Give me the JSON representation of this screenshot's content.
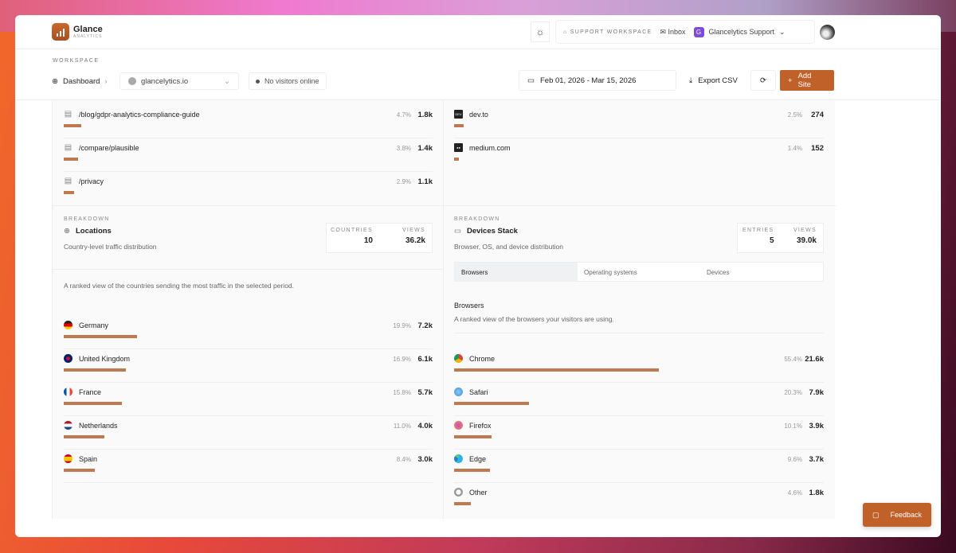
{
  "app": {
    "brand": "Glance",
    "brand_sub": "ANALYTICS"
  },
  "header": {
    "support_workspace": "SUPPORT WORKSPACE",
    "inbox": "Inbox",
    "workspace_badge": "G",
    "workspace_name": "Glancelytics Support"
  },
  "workspace": {
    "label": "WORKSPACE",
    "dashboard": "Dashboard",
    "site": "glancelytics.io",
    "online": "No visitors online",
    "date_range": "Feb 01, 2026 - Mar 15, 2026",
    "export": "Export CSV",
    "add_site": "Add Site"
  },
  "pages": [
    {
      "label": "/blog/gdpr-analytics-compliance-guide",
      "pct": "4.7%",
      "value": "1.8k",
      "share": 4.7
    },
    {
      "label": "/compare/plausible",
      "pct": "3.8%",
      "value": "1.4k",
      "share": 3.8
    },
    {
      "label": "/privacy",
      "pct": "2.9%",
      "value": "1.1k",
      "share": 2.9
    }
  ],
  "sources": [
    {
      "label": "dev.to",
      "icon": "DEV",
      "pct": "2.5%",
      "value": "274",
      "share": 2.5
    },
    {
      "label": "medium.com",
      "icon": "●●",
      "pct": "1.4%",
      "value": "152",
      "share": 1.4
    }
  ],
  "locations": {
    "eyebrow": "BREAKDOWN",
    "title": "Locations",
    "desc": "Country-level traffic distribution",
    "stat1_label": "COUNTRIES",
    "stat1_value": "10",
    "stat2_label": "VIEWS",
    "stat2_value": "36.2k",
    "intro": "A ranked view of the countries sending the most traffic in the selected period.",
    "rows": [
      {
        "label": "Germany",
        "pct": "19.9%",
        "value": "7.2k",
        "share": 19.9,
        "flag": "linear-gradient(#222 33%,#d00 33% 66%,#fc0 66%)"
      },
      {
        "label": "United Kingdom",
        "pct": "16.9%",
        "value": "6.1k",
        "share": 16.9,
        "flag": "radial-gradient(#c8102e 30%,#012169 32%)"
      },
      {
        "label": "France",
        "pct": "15.8%",
        "value": "5.7k",
        "share": 15.8,
        "flag": "linear-gradient(90deg,#0055a4 33%,#fff 33% 66%,#ef4135 66%)"
      },
      {
        "label": "Netherlands",
        "pct": "11.0%",
        "value": "4.0k",
        "share": 11.0,
        "flag": "linear-gradient(#ae1c28 33%,#fff 33% 66%,#21468b 66%)"
      },
      {
        "label": "Spain",
        "pct": "8.4%",
        "value": "3.0k",
        "share": 8.4,
        "flag": "linear-gradient(#c60b1e 25%,#ffc400 25% 75%,#c60b1e 75%)"
      }
    ]
  },
  "devices": {
    "eyebrow": "BREAKDOWN",
    "title": "Devices Stack",
    "desc": "Browser, OS, and device distribution",
    "stat1_label": "ENTRIES",
    "stat1_value": "5",
    "stat2_label": "VIEWS",
    "stat2_value": "39.0k",
    "tabs": [
      "Browsers",
      "Operating systems",
      "Devices"
    ],
    "active_tab": "Browsers",
    "section_title": "Browsers",
    "section_desc": "A ranked view of the browsers your visitors are using.",
    "rows": [
      {
        "label": "Chrome",
        "pct": "55.4%",
        "value": "21.6k",
        "share": 55.4,
        "flag": "conic-gradient(#db4437 0 33%,#f4b400 0 66%,#0f9d58 0)"
      },
      {
        "label": "Safari",
        "pct": "20.3%",
        "value": "7.9k",
        "share": 20.3,
        "flag": "radial-gradient(#8cc8f0,#3b8fd8)"
      },
      {
        "label": "Firefox",
        "pct": "10.1%",
        "value": "3.9k",
        "share": 10.1,
        "flag": "radial-gradient(#c04fd0,#ff8a3c)"
      },
      {
        "label": "Edge",
        "pct": "9.6%",
        "value": "3.7k",
        "share": 9.6,
        "flag": "conic-gradient(#2fb3e8 0 60%,#2b7cd3 0 85%,#5bd06b 0)"
      },
      {
        "label": "Other",
        "pct": "4.6%",
        "value": "1.8k",
        "share": 4.6,
        "flag": "radial-gradient(#fff 40%,#999 42%)"
      }
    ]
  },
  "feedback": "Feedback",
  "colors": {
    "accent": "#c0612a",
    "bar": "#bf7a52"
  }
}
